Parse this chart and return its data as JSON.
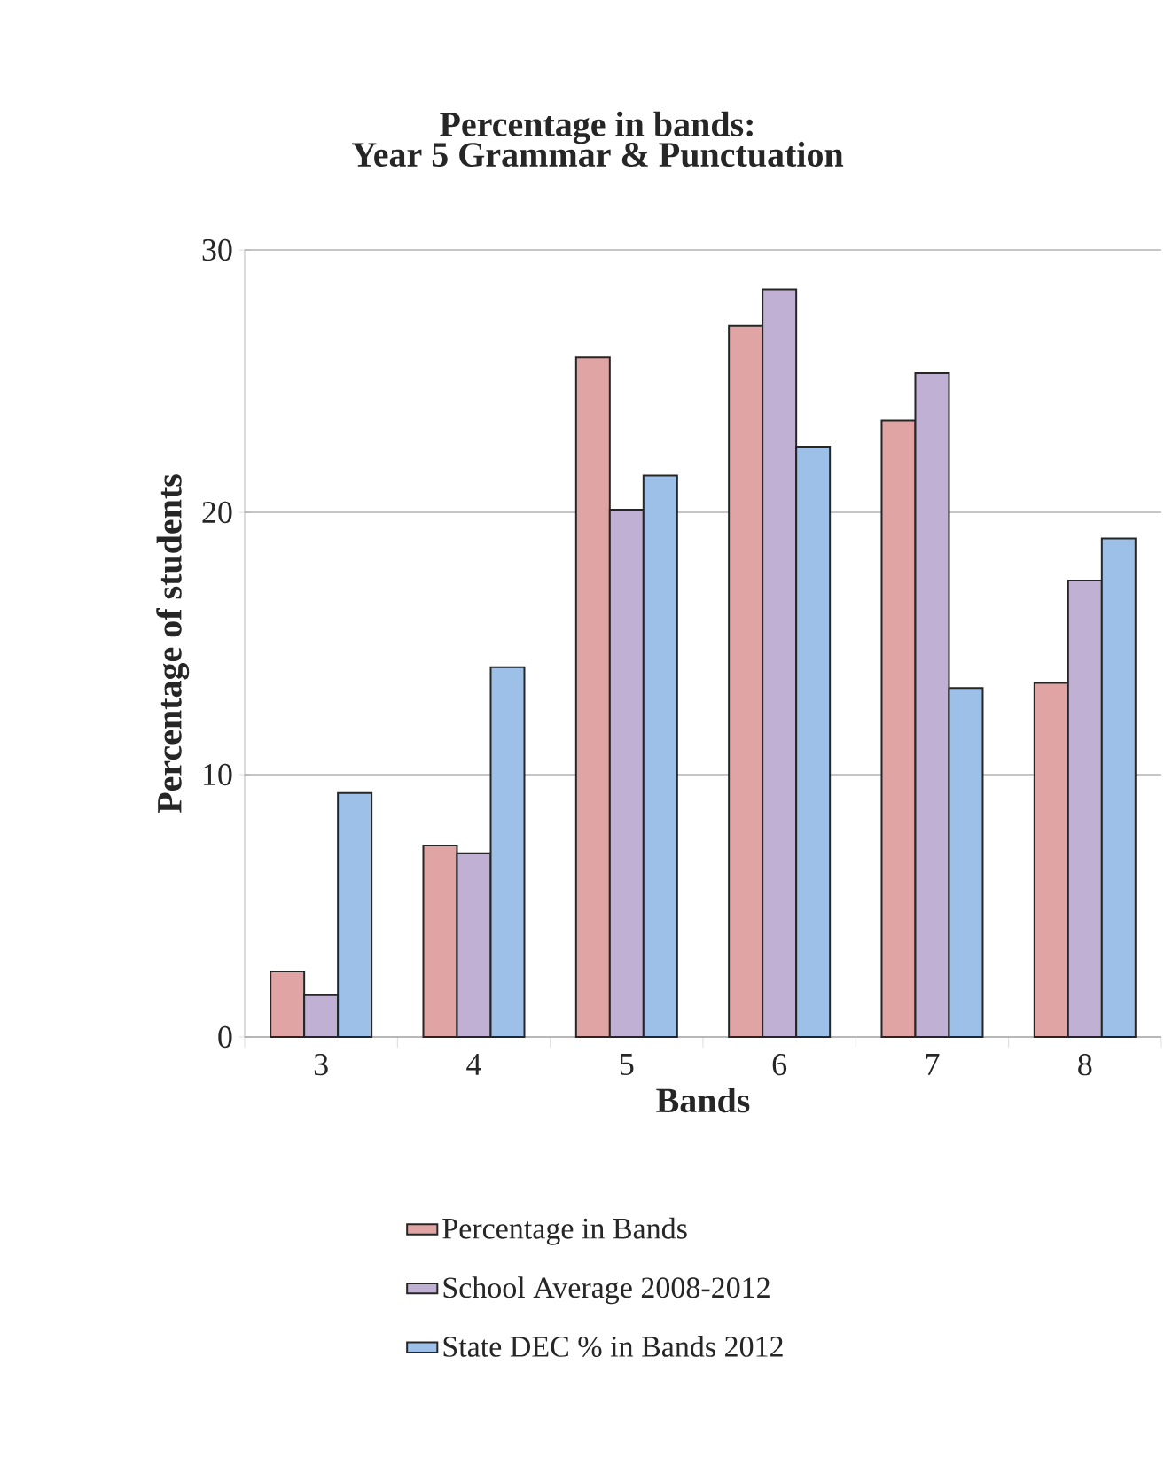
{
  "chart_data": {
    "type": "bar",
    "title": "Percentage in bands:",
    "subtitle": "Year 5 Grammar & Punctuation",
    "xlabel": "Bands",
    "ylabel": "Percentage of students",
    "categories": [
      "3",
      "4",
      "5",
      "6",
      "7",
      "8"
    ],
    "series": [
      {
        "name": "Percentage in Bands",
        "color": "#e0a4a4",
        "values": [
          2.5,
          7.3,
          25.9,
          27.1,
          23.5,
          13.5
        ]
      },
      {
        "name": "School Average 2008-2012",
        "color": "#c0b1d4",
        "values": [
          1.6,
          7.0,
          20.1,
          28.5,
          25.3,
          17.4
        ]
      },
      {
        "name": "State DEC % in Bands 2012",
        "color": "#9dc0e8",
        "values": [
          9.3,
          14.1,
          21.4,
          22.5,
          13.3,
          19.0
        ]
      }
    ],
    "ylim": [
      0,
      30
    ],
    "yticks": [
      0,
      10,
      20,
      30
    ],
    "grid": "y",
    "legend": "bottom"
  }
}
